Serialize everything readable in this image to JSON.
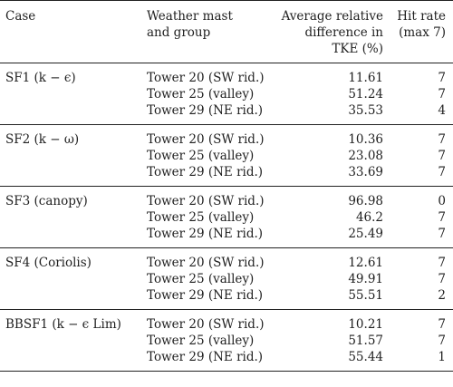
{
  "header": {
    "case": "Case",
    "mast_line1": "Weather mast",
    "mast_line2": "and group",
    "avg_line1": "Average relative",
    "avg_line2": "difference in",
    "avg_line3": "TKE (%)",
    "hit_line1": "Hit rate",
    "hit_line2": "(max 7)"
  },
  "groups": [
    {
      "case": "SF1 (k − ϵ)",
      "rows": [
        {
          "mast": "Tower 20 (SW rid.)",
          "avg": "11.61",
          "hit": "7"
        },
        {
          "mast": "Tower 25 (valley)",
          "avg": "51.24",
          "hit": "7"
        },
        {
          "mast": "Tower 29 (NE rid.)",
          "avg": "35.53",
          "hit": "4"
        }
      ]
    },
    {
      "case": "SF2 (k − ω)",
      "rows": [
        {
          "mast": "Tower 20 (SW rid.)",
          "avg": "10.36",
          "hit": "7"
        },
        {
          "mast": "Tower 25 (valley)",
          "avg": "23.08",
          "hit": "7"
        },
        {
          "mast": "Tower 29 (NE rid.)",
          "avg": "33.69",
          "hit": "7"
        }
      ]
    },
    {
      "case": "SF3 (canopy)",
      "rows": [
        {
          "mast": "Tower 20 (SW rid.)",
          "avg": "96.98",
          "hit": "0"
        },
        {
          "mast": "Tower 25 (valley)",
          "avg": "46.2",
          "hit": "7"
        },
        {
          "mast": "Tower 29 (NE rid.)",
          "avg": "25.49",
          "hit": "7"
        }
      ]
    },
    {
      "case": "SF4 (Coriolis)",
      "rows": [
        {
          "mast": "Tower 20 (SW rid.)",
          "avg": "12.61",
          "hit": "7"
        },
        {
          "mast": "Tower 25 (valley)",
          "avg": "49.91",
          "hit": "7"
        },
        {
          "mast": "Tower 29 (NE rid.)",
          "avg": "55.51",
          "hit": "2"
        }
      ]
    },
    {
      "case": "BBSF1 (k − ϵ Lim)",
      "rows": [
        {
          "mast": "Tower 20 (SW rid.)",
          "avg": "10.21",
          "hit": "7"
        },
        {
          "mast": "Tower 25 (valley)",
          "avg": "51.57",
          "hit": "7"
        },
        {
          "mast": "Tower 29 (NE rid.)",
          "avg": "55.44",
          "hit": "1"
        }
      ]
    }
  ]
}
